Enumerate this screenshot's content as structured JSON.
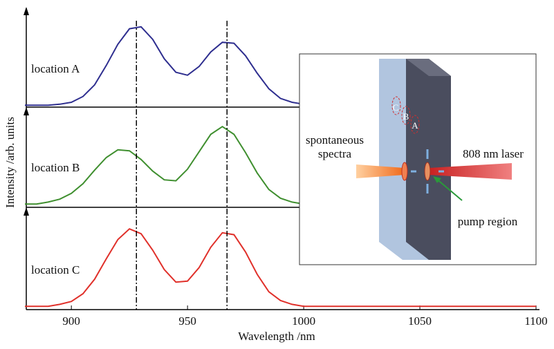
{
  "chart_data": {
    "type": "line",
    "xlabel": "Wavelength /nm",
    "ylabel": "Intensity /arb. units",
    "x": [
      880,
      885,
      890,
      895,
      900,
      905,
      910,
      915,
      920,
      925,
      930,
      935,
      940,
      945,
      950,
      955,
      960,
      965,
      970,
      975,
      980,
      985,
      990,
      995,
      1000,
      1005,
      1010,
      1015,
      1020,
      1025,
      1030,
      1035,
      1040,
      1045,
      1050,
      1055,
      1060,
      1065,
      1070,
      1075,
      1080,
      1085,
      1090,
      1095,
      1100
    ],
    "xlim": [
      880,
      1100
    ],
    "xticks": [
      900,
      950,
      1000,
      1050,
      1100
    ],
    "ylim": [
      0,
      1
    ],
    "vlines": [
      928,
      967
    ],
    "series": [
      {
        "name": "location A",
        "color": "#2e2e8f",
        "values": [
          0.02,
          0.02,
          0.02,
          0.03,
          0.05,
          0.11,
          0.23,
          0.43,
          0.65,
          0.81,
          0.83,
          0.7,
          0.5,
          0.36,
          0.33,
          0.42,
          0.57,
          0.67,
          0.66,
          0.53,
          0.35,
          0.19,
          0.09,
          0.05,
          0.03,
          0.02,
          0.02,
          0.02,
          0.02,
          0.02,
          0.02,
          0.02,
          0.02,
          0.02,
          0.02,
          0.02,
          0.02,
          0.02,
          0.02,
          0.02,
          0.02,
          0.02,
          0.02,
          0.02,
          0.02
        ]
      },
      {
        "name": "location B",
        "color": "#3f8f2f",
        "values": [
          0.02,
          0.02,
          0.04,
          0.07,
          0.13,
          0.23,
          0.37,
          0.5,
          0.58,
          0.57,
          0.48,
          0.36,
          0.27,
          0.26,
          0.38,
          0.56,
          0.74,
          0.82,
          0.74,
          0.55,
          0.34,
          0.17,
          0.08,
          0.04,
          0.02,
          0.02,
          0.02,
          0.02,
          0.02,
          0.02,
          0.02,
          0.02,
          0.02,
          0.02,
          0.02,
          0.02,
          0.02,
          0.02,
          0.02,
          0.02,
          0.02,
          0.02,
          0.02,
          0.02,
          0.02
        ]
      },
      {
        "name": "location C",
        "color": "#e0302a",
        "values": [
          0.02,
          0.02,
          0.02,
          0.04,
          0.07,
          0.15,
          0.3,
          0.51,
          0.71,
          0.82,
          0.77,
          0.6,
          0.4,
          0.27,
          0.28,
          0.42,
          0.63,
          0.78,
          0.76,
          0.58,
          0.35,
          0.17,
          0.08,
          0.04,
          0.02,
          0.02,
          0.02,
          0.02,
          0.02,
          0.02,
          0.02,
          0.02,
          0.02,
          0.02,
          0.02,
          0.02,
          0.02,
          0.02,
          0.02,
          0.02,
          0.02,
          0.02,
          0.02,
          0.02,
          0.02
        ]
      }
    ],
    "inset": {
      "spectra_label": [
        "spontaneous",
        "spectra"
      ],
      "laser_label": "808 nm laser",
      "pump_label": "pump region",
      "spots": [
        "C",
        "B",
        "A"
      ]
    }
  }
}
